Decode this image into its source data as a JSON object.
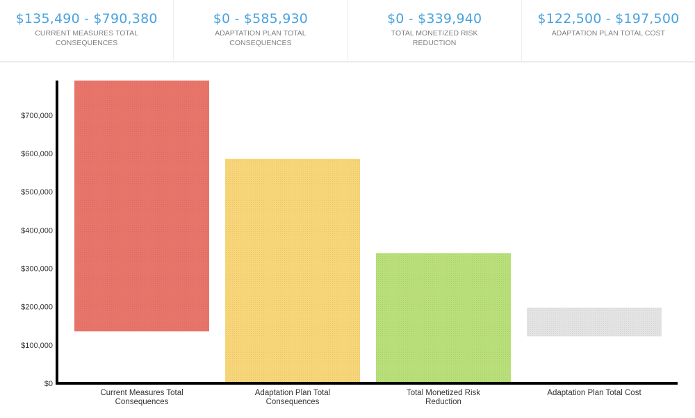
{
  "summary": {
    "cards": [
      {
        "value": "$135,490 - $790,380",
        "label": "CURRENT MEASURES TOTAL CONSEQUENCES"
      },
      {
        "value": "$0 - $585,930",
        "label": "ADAPTATION PLAN TOTAL CONSEQUENCES"
      },
      {
        "value": "$0 - $339,940",
        "label": "TOTAL MONETIZED RISK REDUCTION"
      },
      {
        "value": "$122,500 - $197,500",
        "label": "ADAPTATION PLAN TOTAL COST"
      }
    ]
  },
  "chart_data": {
    "type": "bar",
    "subtype": "floating-range",
    "categories": [
      "Current Measures Total Consequences",
      "Adaptation Plan Total Consequences",
      "Total Monetized Risk Reduction",
      "Adaptation Plan Total Cost"
    ],
    "ranges": [
      [
        135490,
        790380
      ],
      [
        0,
        585930
      ],
      [
        0,
        339940
      ],
      [
        122500,
        197500
      ]
    ],
    "colors": [
      "#e8756a",
      "#f7d679",
      "#b9df7a",
      "#e3e3e3"
    ],
    "ylim": [
      0,
      790380
    ],
    "yticks": [
      0,
      100000,
      200000,
      300000,
      400000,
      500000,
      600000,
      700000
    ],
    "ytick_labels": [
      "$0",
      "$100,000",
      "$200,000",
      "$300,000",
      "$400,000",
      "$500,000",
      "$600,000",
      "$700,000"
    ],
    "grid": false,
    "legend": "none"
  }
}
